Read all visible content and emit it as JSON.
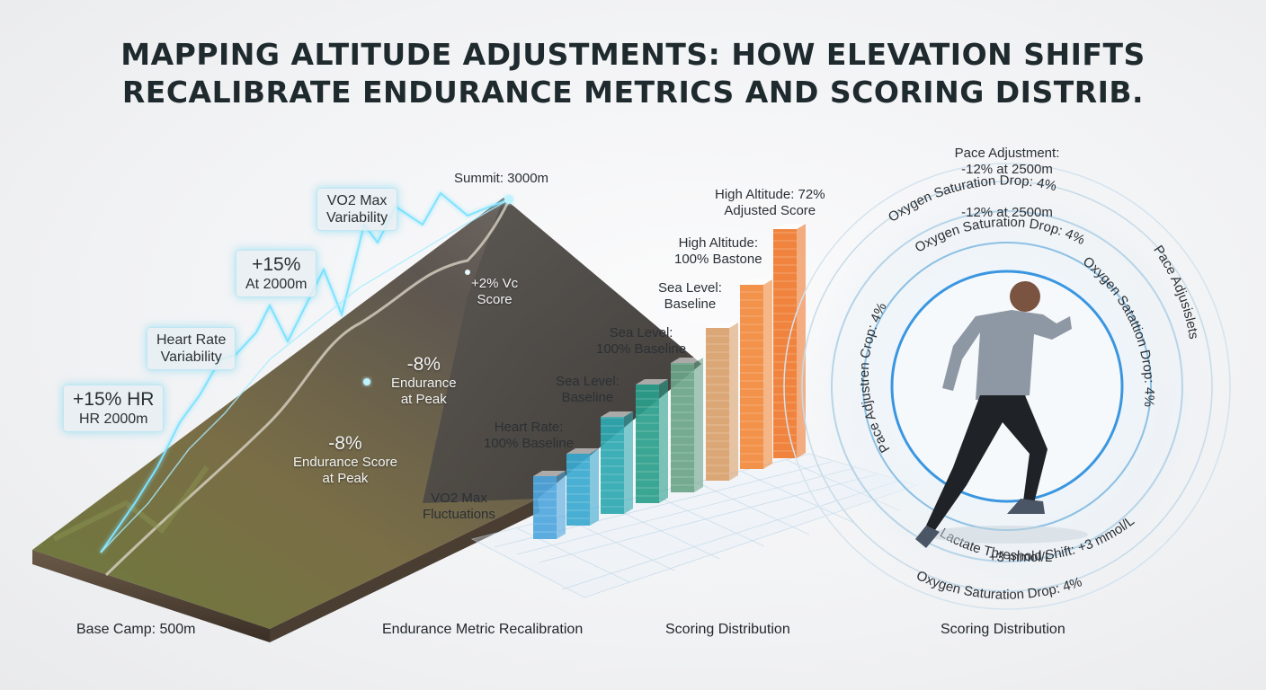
{
  "title": {
    "line1": "MAPPING ALTITUDE ADJUSTMENTS: HOW ELEVATION SHIFTS",
    "line2": "RECALIBRATE ENDURANCE METRICS AND SCORING DISTRIB."
  },
  "mountain": {
    "summit": "Summit: 3000m",
    "base": "Base Camp: 500m",
    "boxes": [
      {
        "line1": "+15% HR",
        "line2": "HR 2000m"
      },
      {
        "line1": "Heart Rate",
        "line2": "Variability"
      },
      {
        "line1": "+15%",
        "line2": "At 2000m"
      },
      {
        "line1": "VO2 Max",
        "line2": "Variability"
      }
    ],
    "overlays": [
      {
        "line1": "+2% Vc",
        "line2": "Score"
      },
      {
        "line1": "-8%",
        "line2": "Endurance",
        "line3": "at Peak"
      },
      {
        "line1": "-8%",
        "line2": "Endurance Score",
        "line3": "at Peak"
      }
    ]
  },
  "bars": {
    "labels": [
      {
        "line1": "VO2 Max",
        "line2": "Fluctuations"
      },
      {
        "line1": "Heart Rate:",
        "line2": "100% Baseline"
      },
      {
        "line1": "Sea Level:",
        "line2": "Baseline"
      },
      {
        "line1": "Sea Level:",
        "line2": "100% Baseline"
      },
      {
        "line1": "Sea Level:",
        "line2": "Baseline"
      },
      {
        "line1": "High Altitude:",
        "line2": "100% Bastone"
      },
      {
        "line1": "High Altitude: 72%",
        "line2": "Adjusted Score"
      }
    ],
    "colors": [
      "#4fa6dd",
      "#3aa9cf",
      "#2ea8b0",
      "#2a9e8a",
      "#6aa488",
      "#d9a06a",
      "#f28a3c",
      "#ef7a2e"
    ]
  },
  "rings": {
    "top1": "Pace Adjustment:",
    "top2": "-12% at 2500m",
    "r2a": "Oxygen Saturation Drop: 4%",
    "r2b": "-12% at 2500m",
    "r3": "Oxygen Saturation Drop: 4%",
    "left": "Pace Adjustren Crop: 4%",
    "right1": "Oxygen Satattion Drop: 4%",
    "right2": "Pace Adjusislets",
    "lactate1": "Lactate Threshold Shift: +3 mmol/L",
    "lactate2": "+3 mmol/L",
    "bottom": "Oxygen Saturation Drop: 4%"
  },
  "footer": {
    "col2": "Endurance Metric Recalibration",
    "col3": "Scoring Distribution",
    "col4": "Scoring Distribution"
  }
}
